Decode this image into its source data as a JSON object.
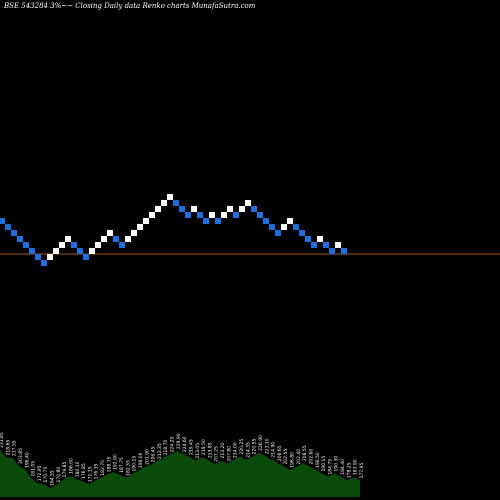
{
  "chart_data": {
    "type": "renko",
    "title": "BSE 543284  3%~~ Closing Daily data  Renko  charts MunafaSutra.com",
    "up_color": "#ffffff",
    "down_color": "#1e6fdc",
    "reference_line_color": "#a0520f",
    "volume_color": "#0a4a0a",
    "bricks": [
      {
        "dir": "down",
        "level": 0
      },
      {
        "dir": "down",
        "level": -1
      },
      {
        "dir": "down",
        "level": -2
      },
      {
        "dir": "down",
        "level": -3
      },
      {
        "dir": "down",
        "level": -4
      },
      {
        "dir": "down",
        "level": -5
      },
      {
        "dir": "down",
        "level": -6
      },
      {
        "dir": "down",
        "level": -7
      },
      {
        "dir": "up",
        "level": -6
      },
      {
        "dir": "up",
        "level": -5
      },
      {
        "dir": "up",
        "level": -4
      },
      {
        "dir": "up",
        "level": -3
      },
      {
        "dir": "down",
        "level": -4
      },
      {
        "dir": "down",
        "level": -5
      },
      {
        "dir": "down",
        "level": -6
      },
      {
        "dir": "up",
        "level": -5
      },
      {
        "dir": "up",
        "level": -4
      },
      {
        "dir": "up",
        "level": -3
      },
      {
        "dir": "up",
        "level": -2
      },
      {
        "dir": "down",
        "level": -3
      },
      {
        "dir": "down",
        "level": -4
      },
      {
        "dir": "up",
        "level": -3
      },
      {
        "dir": "up",
        "level": -2
      },
      {
        "dir": "up",
        "level": -1
      },
      {
        "dir": "up",
        "level": 0
      },
      {
        "dir": "up",
        "level": 1
      },
      {
        "dir": "up",
        "level": 2
      },
      {
        "dir": "up",
        "level": 3
      },
      {
        "dir": "up",
        "level": 4
      },
      {
        "dir": "down",
        "level": 3
      },
      {
        "dir": "down",
        "level": 2
      },
      {
        "dir": "down",
        "level": 1
      },
      {
        "dir": "up",
        "level": 2
      },
      {
        "dir": "down",
        "level": 1
      },
      {
        "dir": "down",
        "level": 0
      },
      {
        "dir": "up",
        "level": 1
      },
      {
        "dir": "down",
        "level": 0
      },
      {
        "dir": "up",
        "level": 1
      },
      {
        "dir": "up",
        "level": 2
      },
      {
        "dir": "down",
        "level": 1
      },
      {
        "dir": "up",
        "level": 2
      },
      {
        "dir": "up",
        "level": 3
      },
      {
        "dir": "down",
        "level": 2
      },
      {
        "dir": "down",
        "level": 1
      },
      {
        "dir": "down",
        "level": 0
      },
      {
        "dir": "down",
        "level": -1
      },
      {
        "dir": "down",
        "level": -2
      },
      {
        "dir": "up",
        "level": -1
      },
      {
        "dir": "up",
        "level": 0
      },
      {
        "dir": "down",
        "level": -1
      },
      {
        "dir": "down",
        "level": -2
      },
      {
        "dir": "down",
        "level": -3
      },
      {
        "dir": "down",
        "level": -4
      },
      {
        "dir": "up",
        "level": -3
      },
      {
        "dir": "down",
        "level": -4
      },
      {
        "dir": "down",
        "level": -5
      },
      {
        "dir": "up",
        "level": -4
      },
      {
        "dir": "down",
        "level": -5
      }
    ],
    "volume_labels": [
      "231.85",
      "218.65",
      "217.55",
      "203.85",
      "196.40",
      "181.05",
      "172.95",
      "170.75",
      "164.55",
      "170.80",
      "179.85",
      "186.00",
      "180.10",
      "176.85",
      "171.15",
      "176.35",
      "182.70",
      "188.75",
      "192.90",
      "187.75",
      "182.55",
      "190.15",
      "196.00",
      "201.90",
      "206.45",
      "212.35",
      "218.70",
      "224.25",
      "229.90",
      "224.60",
      "219.45",
      "213.05",
      "219.50",
      "213.85",
      "207.25",
      "213.20",
      "207.80",
      "214.00",
      "220.25",
      "214.35",
      "220.55",
      "226.90",
      "221.10",
      "214.90",
      "208.65",
      "202.55",
      "196.80",
      "202.40",
      "208.55",
      "202.60",
      "196.50",
      "190.15",
      "184.75",
      "190.30",
      "184.40",
      "178.25",
      "183.90",
      "177.95"
    ]
  }
}
